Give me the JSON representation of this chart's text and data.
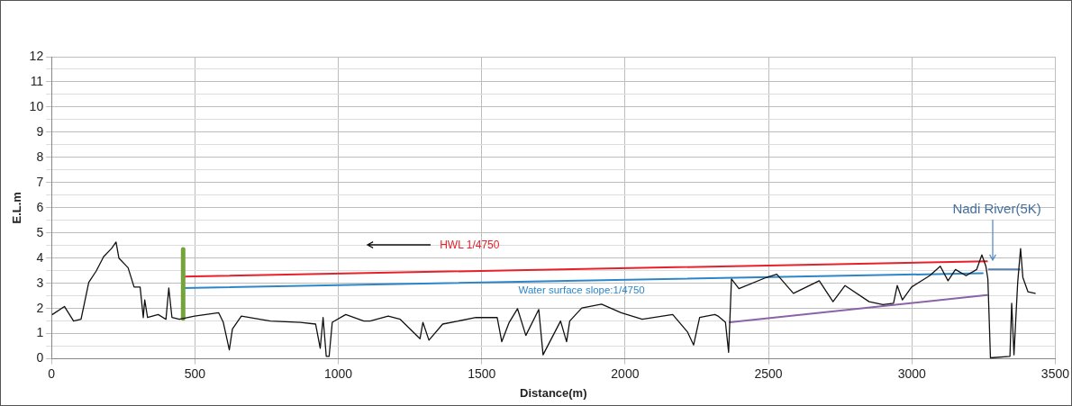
{
  "chart_data": {
    "type": "line",
    "xlabel": "Distance(m)",
    "ylabel": "E.L.m",
    "xlim": [
      0,
      3500
    ],
    "xticks": [
      0,
      500,
      1000,
      1500,
      2000,
      2500,
      3000,
      3500
    ],
    "ylim": [
      0,
      12
    ],
    "yticks": [
      0,
      {
        "value": 0.5,
        "label": null
      },
      1,
      {
        "value": 1.5,
        "label": null
      },
      2,
      {
        "value": 2.5,
        "label": null
      },
      3,
      {
        "value": 3.5,
        "label": null
      },
      4,
      {
        "value": 4.5,
        "label": null
      },
      5,
      {
        "value": 5.5,
        "label": null
      },
      6,
      {
        "value": 6.5,
        "label": null
      },
      7,
      {
        "value": 7.5,
        "label": null
      },
      8,
      {
        "value": 8.5,
        "label": null
      },
      9,
      {
        "value": 9.5,
        "label": null
      },
      10,
      {
        "value": 10.5,
        "label": null
      },
      11,
      {
        "value": 11.5,
        "label": null
      },
      12
    ],
    "grid": true,
    "legend": false,
    "marker": "none",
    "series": [
      {
        "color": "#111111",
        "x": [
          3,
          45,
          77,
          103,
          130,
          156,
          182,
          209,
          225,
          235,
          267,
          288,
          309,
          320,
          325,
          335,
          372,
          399,
          409,
          420,
          446,
          499,
          583,
          599,
          620,
          631,
          662,
          763,
          868,
          921,
          937,
          947,
          958,
          968,
          979,
          1026,
          1089,
          1111,
          1174,
          1216,
          1285,
          1295,
          1316,
          1364,
          1480,
          1554,
          1570,
          1596,
          1625,
          1654,
          1699,
          1714,
          1775,
          1796,
          1807,
          1849,
          1918,
          1986,
          2060,
          2166,
          2218,
          2239,
          2260,
          2313,
          2324,
          2350,
          2361,
          2371,
          2397,
          2492,
          2529,
          2587,
          2677,
          2725,
          2767,
          2851,
          2899,
          2936,
          2949,
          2967,
          2999,
          3062,
          3099,
          3126,
          3152,
          3189,
          3226,
          3244,
          3258,
          3265,
          3274,
          3342,
          3348,
          3356,
          3369,
          3379,
          3387,
          3405,
          3430
        ],
        "values": [
          1.76,
          2.08,
          1.5,
          1.57,
          3.04,
          3.49,
          4.06,
          4.38,
          4.64,
          4.0,
          3.62,
          2.85,
          2.85,
          1.64,
          2.34,
          1.64,
          1.76,
          1.57,
          2.81,
          1.64,
          1.57,
          1.7,
          1.83,
          1.45,
          0.36,
          1.19,
          1.7,
          1.5,
          1.45,
          1.38,
          0.42,
          1.64,
          0.1,
          0.1,
          1.45,
          1.76,
          1.5,
          1.5,
          1.7,
          1.57,
          0.8,
          1.45,
          0.74,
          1.38,
          1.64,
          1.64,
          0.68,
          1.45,
          1.99,
          0.93,
          1.96,
          0.16,
          1.5,
          0.68,
          1.5,
          2.02,
          2.17,
          1.83,
          1.57,
          1.76,
          1.06,
          0.55,
          1.64,
          1.76,
          1.7,
          1.45,
          0.26,
          3.17,
          2.79,
          3.23,
          3.36,
          2.6,
          3.1,
          2.27,
          2.91,
          2.27,
          2.15,
          2.21,
          2.91,
          2.34,
          2.85,
          3.3,
          3.68,
          3.1,
          3.55,
          3.3,
          3.55,
          4.13,
          3.68,
          3.17,
          0.04,
          0.1,
          2.21,
          0.16,
          3.04,
          4.38,
          3.23,
          2.66,
          2.6
        ]
      },
      {
        "color": "#77a33b",
        "x": [
          459,
          459
        ],
        "values": [
          1.6,
          4.35
        ]
      },
      {
        "name": "HWL 1/4750",
        "color": "#e8202a",
        "x": [
          456,
          3262
        ],
        "values": [
          3.27,
          3.87
        ]
      },
      {
        "name": "Water surface slope:1/4750",
        "color": "#2e86c8",
        "x": [
          456,
          3247
        ],
        "values": [
          2.81,
          3.4
        ]
      },
      {
        "color": "#5a7fa8",
        "x": [
          3268,
          3376
        ],
        "values": [
          3.55,
          3.55
        ]
      },
      {
        "color": "#8b63a8",
        "x": [
          2365,
          3262
        ],
        "values": [
          1.45,
          2.53
        ]
      }
    ],
    "annotations": [
      "Nadi River(5K)"
    ]
  }
}
